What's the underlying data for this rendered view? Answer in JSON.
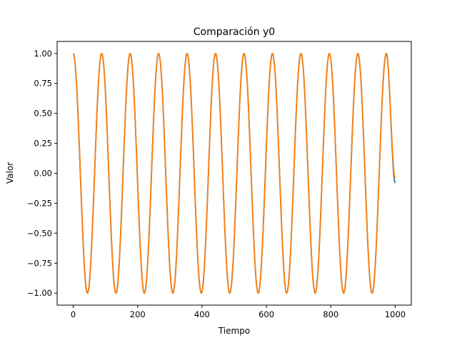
{
  "chart_data": {
    "type": "line",
    "title": "Comparación y0",
    "xlabel": "Tiempo",
    "ylabel": "Valor",
    "xlim": [
      -50,
      1050
    ],
    "ylim": [
      -1.1,
      1.1
    ],
    "x_ticks": [
      0,
      200,
      400,
      600,
      800,
      1000
    ],
    "x_tick_labels": [
      "0",
      "200",
      "400",
      "600",
      "800",
      "1000"
    ],
    "y_ticks": [
      1.0,
      0.75,
      0.5,
      0.25,
      0.0,
      -0.25,
      -0.5,
      -0.75,
      -1.0
    ],
    "y_tick_labels": [
      "1.00",
      "0.75",
      "0.50",
      "0.25",
      "0.00",
      "−0.25",
      "−0.50",
      "−0.75",
      "−1.00"
    ],
    "grid": false,
    "legend": "none",
    "series": [
      {
        "color": "#1f77b4",
        "x": [
          0,
          44.2,
          88.4,
          132.6,
          176.8,
          221.0,
          265.2,
          309.4,
          353.6,
          397.8,
          442.0,
          486.2,
          530.4,
          574.6,
          618.8,
          663.0,
          707.2,
          751.4,
          795.6,
          839.8,
          884.0,
          928.2,
          972.4,
          1000
        ],
        "y": [
          1.0,
          -1.0,
          1.0,
          -1.0,
          1.0,
          -1.0,
          1.0,
          -1.0,
          1.0,
          -1.0,
          1.0,
          -1.0,
          1.0,
          -1.0,
          1.0,
          -1.0,
          1.0,
          -1.0,
          1.0,
          -1.0,
          1.0,
          -1.0,
          1.0,
          -0.08
        ]
      },
      {
        "color": "#ff7f0e",
        "x": [
          0,
          44.2,
          88.4,
          132.6,
          176.8,
          221.0,
          265.2,
          309.4,
          353.6,
          397.8,
          442.0,
          486.2,
          530.4,
          574.6,
          618.8,
          663.0,
          707.2,
          751.4,
          795.6,
          839.8,
          884.0,
          928.2,
          972.4,
          1000
        ],
        "y": [
          1.0,
          -1.0,
          1.0,
          -1.0,
          1.0,
          -1.0,
          1.0,
          -1.0,
          1.0,
          -1.0,
          1.0,
          -1.0,
          1.0,
          -1.0,
          1.0,
          -1.0,
          1.0,
          -1.0,
          1.0,
          -1.0,
          1.0,
          -1.0,
          1.0,
          -0.04
        ]
      }
    ]
  }
}
